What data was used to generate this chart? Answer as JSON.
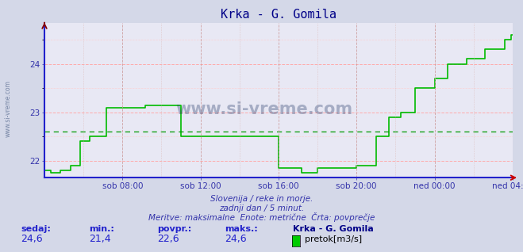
{
  "title": "Krka - G. Gomila",
  "background_color": "#d4d8e8",
  "plot_bg_color": "#e8e8f4",
  "grid_color_major_h": "#ffaaaa",
  "grid_color_major_v": "#ddaaaa",
  "line_color": "#00bb00",
  "avg_line_color": "#009900",
  "axis_color": "#2222cc",
  "title_color": "#000088",
  "label_color": "#3333aa",
  "subtitle_lines": [
    "Slovenija / reke in morje.",
    "zadnji dan / 5 minut.",
    "Meritve: maksimalne  Enote: metrične  Črta: povprečje"
  ],
  "legend_labels": [
    "sedaj:",
    "min.:",
    "povpr.:",
    "maks.:",
    "Krka - G. Gomila"
  ],
  "legend_values": [
    "24,6",
    "21,4",
    "22,6",
    "24,6"
  ],
  "legend_series_label": "pretok[m3/s]",
  "legend_series_color": "#00cc00",
  "xticklabels": [
    "sob 08:00",
    "sob 12:00",
    "sob 16:00",
    "sob 20:00",
    "ned 00:00",
    "ned 04:00"
  ],
  "yticks": [
    22,
    23,
    24
  ],
  "ylim": [
    21.65,
    24.85
  ],
  "xlim": [
    0,
    288
  ],
  "avg_value": 22.6,
  "watermark": "www.si-vreme.com",
  "x_tick_positions": [
    48,
    96,
    144,
    192,
    240,
    288
  ],
  "data_x": [
    0,
    4,
    4,
    10,
    10,
    16,
    16,
    22,
    22,
    28,
    28,
    38,
    38,
    62,
    62,
    84,
    84,
    144,
    144,
    158,
    158,
    168,
    168,
    192,
    192,
    204,
    204,
    212,
    212,
    219,
    219,
    228,
    228,
    240,
    240,
    248,
    248,
    260,
    260,
    271,
    271,
    283,
    283,
    287,
    287,
    288
  ],
  "data_y": [
    21.8,
    21.8,
    21.75,
    21.75,
    21.8,
    21.8,
    21.9,
    21.9,
    22.4,
    22.4,
    22.5,
    22.5,
    23.1,
    23.1,
    23.15,
    23.15,
    22.5,
    22.5,
    21.85,
    21.85,
    21.75,
    21.75,
    21.85,
    21.85,
    21.9,
    21.9,
    22.5,
    22.5,
    22.9,
    22.9,
    23.0,
    23.0,
    23.5,
    23.5,
    23.7,
    23.7,
    24.0,
    24.0,
    24.1,
    24.1,
    24.3,
    24.3,
    24.5,
    24.5,
    24.6,
    24.6
  ]
}
